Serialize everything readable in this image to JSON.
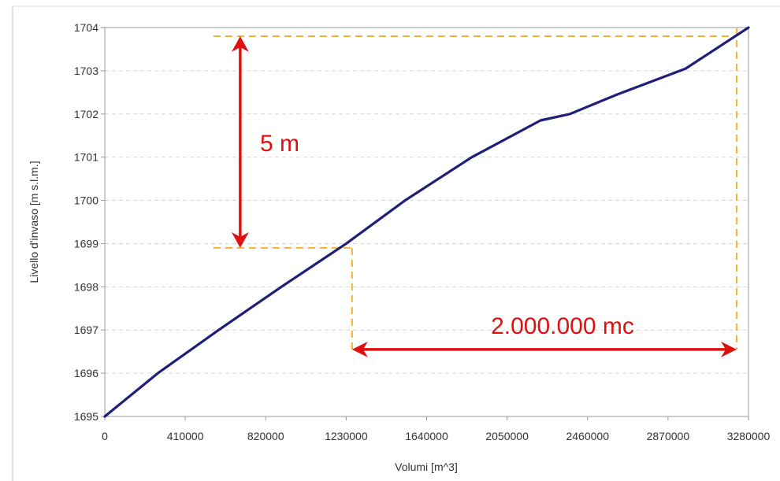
{
  "chart_data": {
    "type": "line",
    "xlabel": "Volumi [m^3]",
    "ylabel": "Livello d'invaso [m s.l.m.]",
    "xlim": [
      0,
      3280000
    ],
    "ylim": [
      1695,
      1704
    ],
    "x_ticks": [
      "0",
      "410000",
      "820000",
      "1230000",
      "1640000",
      "2050000",
      "2460000",
      "2870000",
      "3280000"
    ],
    "y_ticks": [
      "1695",
      "1696",
      "1697",
      "1698",
      "1699",
      "1700",
      "1701",
      "1702",
      "1703",
      "1704"
    ],
    "grid": "horizontal dashed",
    "series": [
      {
        "color": "#1f1f7a",
        "x": [
          0,
          270000,
          580000,
          900000,
          1230000,
          1530000,
          1870000,
          2220000,
          2370000,
          2610000,
          2960000,
          3280000
        ],
        "y": [
          1695,
          1696,
          1697,
          1698,
          1699,
          1700,
          1701,
          1701.85,
          1702,
          1702.45,
          1703.05,
          1704
        ]
      }
    ],
    "annotations": {
      "level_marker": {
        "label": "5 m",
        "upper_y": 1703.8,
        "lower_y": 1698.9,
        "x": 690000
      },
      "volume_marker": {
        "label": "2.000.000 mc",
        "left_x": 1260000,
        "right_x": 3220000,
        "y": 1696.55
      },
      "guide_color": "#f2b233",
      "arrow_color": "#e01010"
    }
  }
}
